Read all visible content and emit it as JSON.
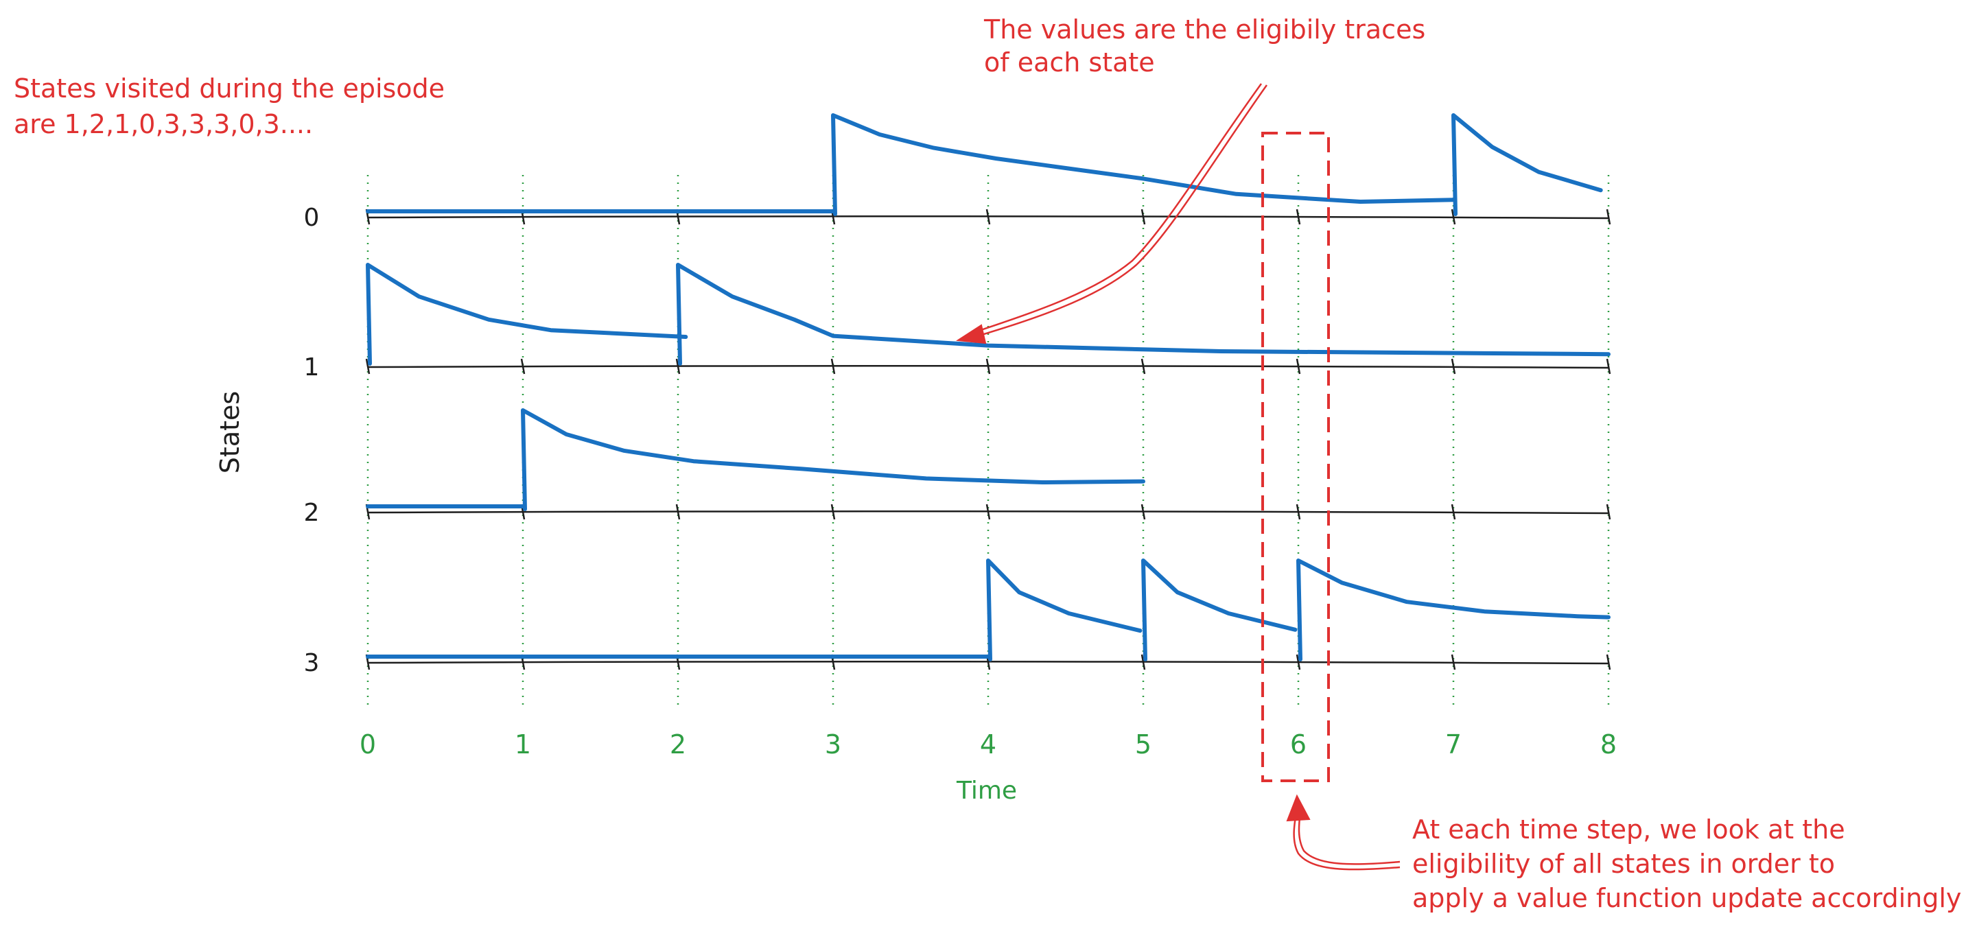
{
  "annotations": {
    "states_visited": [
      "States visited during the episode",
      "are 1,2,1,0,3,3,3,0,3...."
    ],
    "trace_note": [
      "The values are the eligibily traces",
      "of each state"
    ],
    "update_note": [
      "At each time step, we look at the",
      "eligibility of all states in order to",
      "apply a value function update accordingly"
    ]
  },
  "axes": {
    "y_title": "States",
    "x_title": "Time"
  },
  "states": [
    "0",
    "1",
    "2",
    "3"
  ],
  "times": [
    "0",
    "1",
    "2",
    "3",
    "4",
    "5",
    "6",
    "7",
    "8"
  ],
  "highlighted_time": "6",
  "colors": {
    "trace": "#1971c2",
    "annotation": "#e03131",
    "time_axis": "#2f9e44",
    "baseline": "#1e1e1e"
  },
  "chart_data": {
    "type": "line",
    "x": [
      0,
      1,
      2,
      3,
      4,
      5,
      6,
      7,
      8
    ],
    "visits": [
      1,
      2,
      1,
      0,
      3,
      3,
      3,
      0,
      3
    ],
    "series": [
      {
        "name": "0",
        "segments": [
          {
            "from": 0,
            "to": 3,
            "points": [
              [
                0,
                0.0
              ],
              [
                3,
                0.0
              ]
            ]
          },
          {
            "from": 3,
            "to": 7,
            "points": [
              [
                3,
                1.0
              ],
              [
                3.3,
                0.8
              ],
              [
                3.65,
                0.66
              ],
              [
                4.05,
                0.55
              ],
              [
                4.5,
                0.45
              ],
              [
                5,
                0.34
              ],
              [
                5.6,
                0.18
              ],
              [
                6.4,
                0.1
              ],
              [
                7,
                0.12
              ]
            ]
          },
          {
            "from": 7,
            "to": 8,
            "points": [
              [
                7,
                1.0
              ],
              [
                7.25,
                0.67
              ],
              [
                7.55,
                0.41
              ],
              [
                7.95,
                0.22
              ]
            ]
          }
        ]
      },
      {
        "name": "1",
        "segments": [
          {
            "from": 0,
            "to": 2,
            "points": [
              [
                0,
                1.0
              ],
              [
                0.33,
                0.67
              ],
              [
                0.78,
                0.43
              ],
              [
                1.18,
                0.32
              ],
              [
                2.05,
                0.25
              ]
            ]
          },
          {
            "from": 2,
            "to": 8,
            "points": [
              [
                2,
                1.0
              ],
              [
                2.35,
                0.67
              ],
              [
                2.75,
                0.43
              ],
              [
                3,
                0.26
              ],
              [
                4,
                0.16
              ],
              [
                5.5,
                0.1
              ],
              [
                8,
                0.07
              ]
            ]
          }
        ]
      },
      {
        "name": "2",
        "segments": [
          {
            "from": 0,
            "to": 1,
            "points": [
              [
                0,
                0.0
              ],
              [
                1,
                0.0
              ]
            ]
          },
          {
            "from": 1,
            "to": 5,
            "points": [
              [
                1,
                1.0
              ],
              [
                1.28,
                0.75
              ],
              [
                1.65,
                0.58
              ],
              [
                2.1,
                0.47
              ],
              [
                2.8,
                0.39
              ],
              [
                3.6,
                0.29
              ],
              [
                4.35,
                0.25
              ],
              [
                5,
                0.26
              ]
            ]
          }
        ]
      },
      {
        "name": "3",
        "segments": [
          {
            "from": 0,
            "to": 4,
            "points": [
              [
                0,
                0.0
              ],
              [
                4,
                0.0
              ]
            ]
          },
          {
            "from": 4,
            "to": 5,
            "points": [
              [
                4,
                1.0
              ],
              [
                4.2,
                0.67
              ],
              [
                4.52,
                0.45
              ],
              [
                4.98,
                0.27
              ]
            ]
          },
          {
            "from": 5,
            "to": 6,
            "points": [
              [
                5,
                1.0
              ],
              [
                5.22,
                0.67
              ],
              [
                5.55,
                0.45
              ],
              [
                5.98,
                0.28
              ]
            ]
          },
          {
            "from": 6,
            "to": 8,
            "points": [
              [
                6,
                1.0
              ],
              [
                6.28,
                0.77
              ],
              [
                6.7,
                0.57
              ],
              [
                7.2,
                0.47
              ],
              [
                7.8,
                0.42
              ],
              [
                8,
                0.41
              ]
            ]
          }
        ]
      }
    ]
  }
}
